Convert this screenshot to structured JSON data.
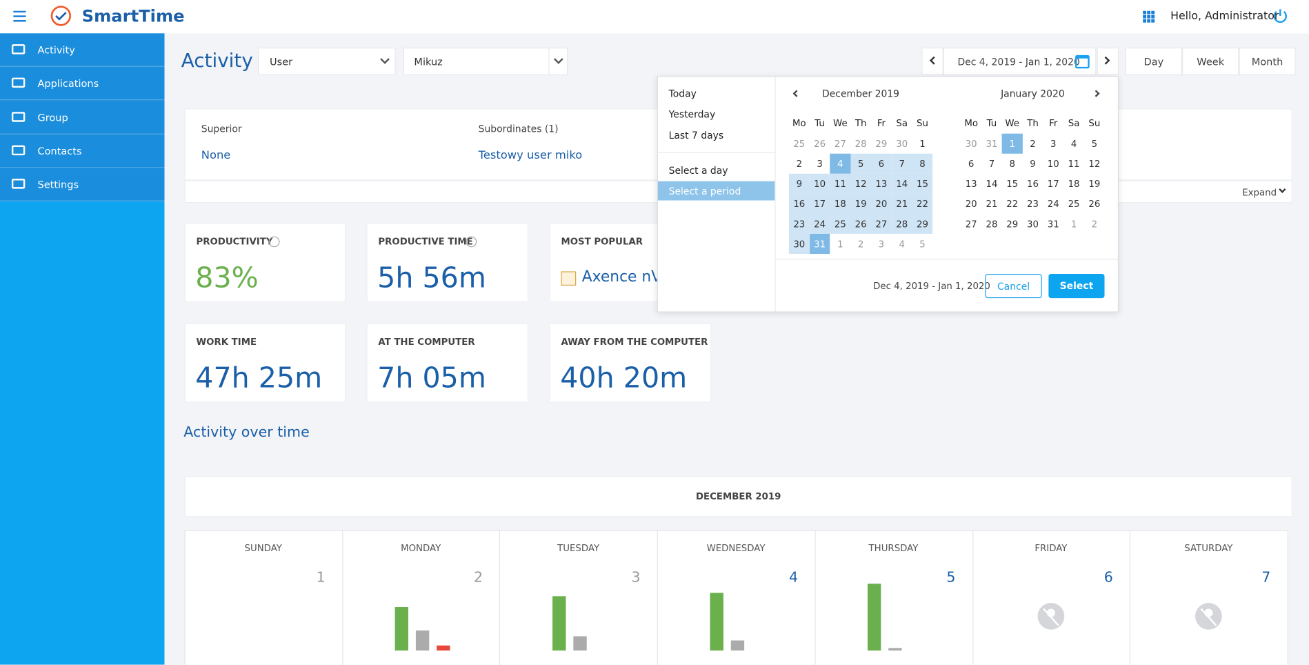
{
  "header": {
    "logo": "SmartTime",
    "greeting": "Hello, Administrator"
  },
  "sidebar": {
    "items": [
      "Activity",
      "Applications",
      "Group",
      "Contacts",
      "Settings"
    ]
  },
  "toolbar": {
    "title": "Activity",
    "filter_type": "User",
    "filter_value": "Mikuz",
    "date_range": "Dec 4, 2019 - Jan 1, 2020",
    "views": [
      "Day",
      "Week",
      "Month"
    ]
  },
  "info": {
    "superior_label": "Superior",
    "superior": "None",
    "subordinates_label": "Subordinates (1)",
    "subordinates": "Testowy user miko",
    "expand": "Expand"
  },
  "stats": [
    [
      {
        "label": "PRODUCTIVITY",
        "value": "83%"
      },
      {
        "label": "PRODUCTIVE TIME",
        "value": "5h 56m"
      },
      {
        "label": "MOST POPULAR",
        "value": "Axence nVis"
      }
    ],
    [
      {
        "label": "WORK TIME",
        "value": "47h 25m"
      },
      {
        "label": "AT THE COMPUTER",
        "value": "7h 05m"
      },
      {
        "label": "AWAY FROM THE COMPUTER",
        "value": "40h 20m"
      }
    ]
  ],
  "activity": {
    "title": "Activity over time",
    "month": "DECEMBER 2019",
    "bar_colors": [
      "#6ab04c",
      "#ababab",
      "#e8483b"
    ],
    "days": [
      {
        "name": "SUNDAY",
        "number": "1",
        "bars": []
      },
      {
        "name": "MONDAY",
        "number": "2",
        "bars": [
          52,
          24,
          6
        ]
      },
      {
        "name": "TUESDAY",
        "number": "3",
        "bars": [
          65,
          17
        ]
      },
      {
        "name": "WEDNESDAY",
        "number": "4",
        "bars": [
          69,
          12
        ]
      },
      {
        "name": "THURSDAY",
        "number": "5",
        "bars": [
          80,
          3
        ]
      },
      {
        "name": "FRIDAY",
        "number": "6",
        "bars": []
      },
      {
        "name": "SATURDAY",
        "number": "7",
        "bars": []
      }
    ]
  },
  "picker": {
    "presets": [
      "Today",
      "Yesterday",
      "Last 7 days"
    ],
    "modes": [
      "Select a day",
      "Select a period"
    ],
    "calendars": [
      {
        "title": "December 2019",
        "weekdays": [
          "Mo",
          "Tu",
          "We",
          "Th",
          "Fr",
          "Sa",
          "Su"
        ],
        "days": [
          25,
          26,
          27,
          28,
          29,
          30,
          1,
          2,
          3,
          4,
          5,
          6,
          7,
          8,
          9,
          10,
          11,
          12,
          13,
          14,
          15,
          16,
          17,
          18,
          19,
          20,
          21,
          22,
          23,
          24,
          25,
          26,
          27,
          28,
          29,
          30,
          31,
          1,
          2,
          3,
          4,
          5
        ]
      },
      {
        "title": "January 2020",
        "weekdays": [
          "Mo",
          "Tu",
          "We",
          "Th",
          "Fr",
          "Sa",
          "Su"
        ],
        "days": [
          30,
          31,
          1,
          2,
          3,
          4,
          5,
          6,
          7,
          8,
          9,
          10,
          11,
          12,
          13,
          14,
          15,
          16,
          17,
          18,
          19,
          20,
          21,
          22,
          23,
          24,
          25,
          26,
          27,
          28,
          29,
          30,
          31,
          1,
          2
        ]
      }
    ],
    "selection": "Dec 4, 2019 - Jan 1, 2020",
    "cancel": "Cancel",
    "select": "Select"
  }
}
